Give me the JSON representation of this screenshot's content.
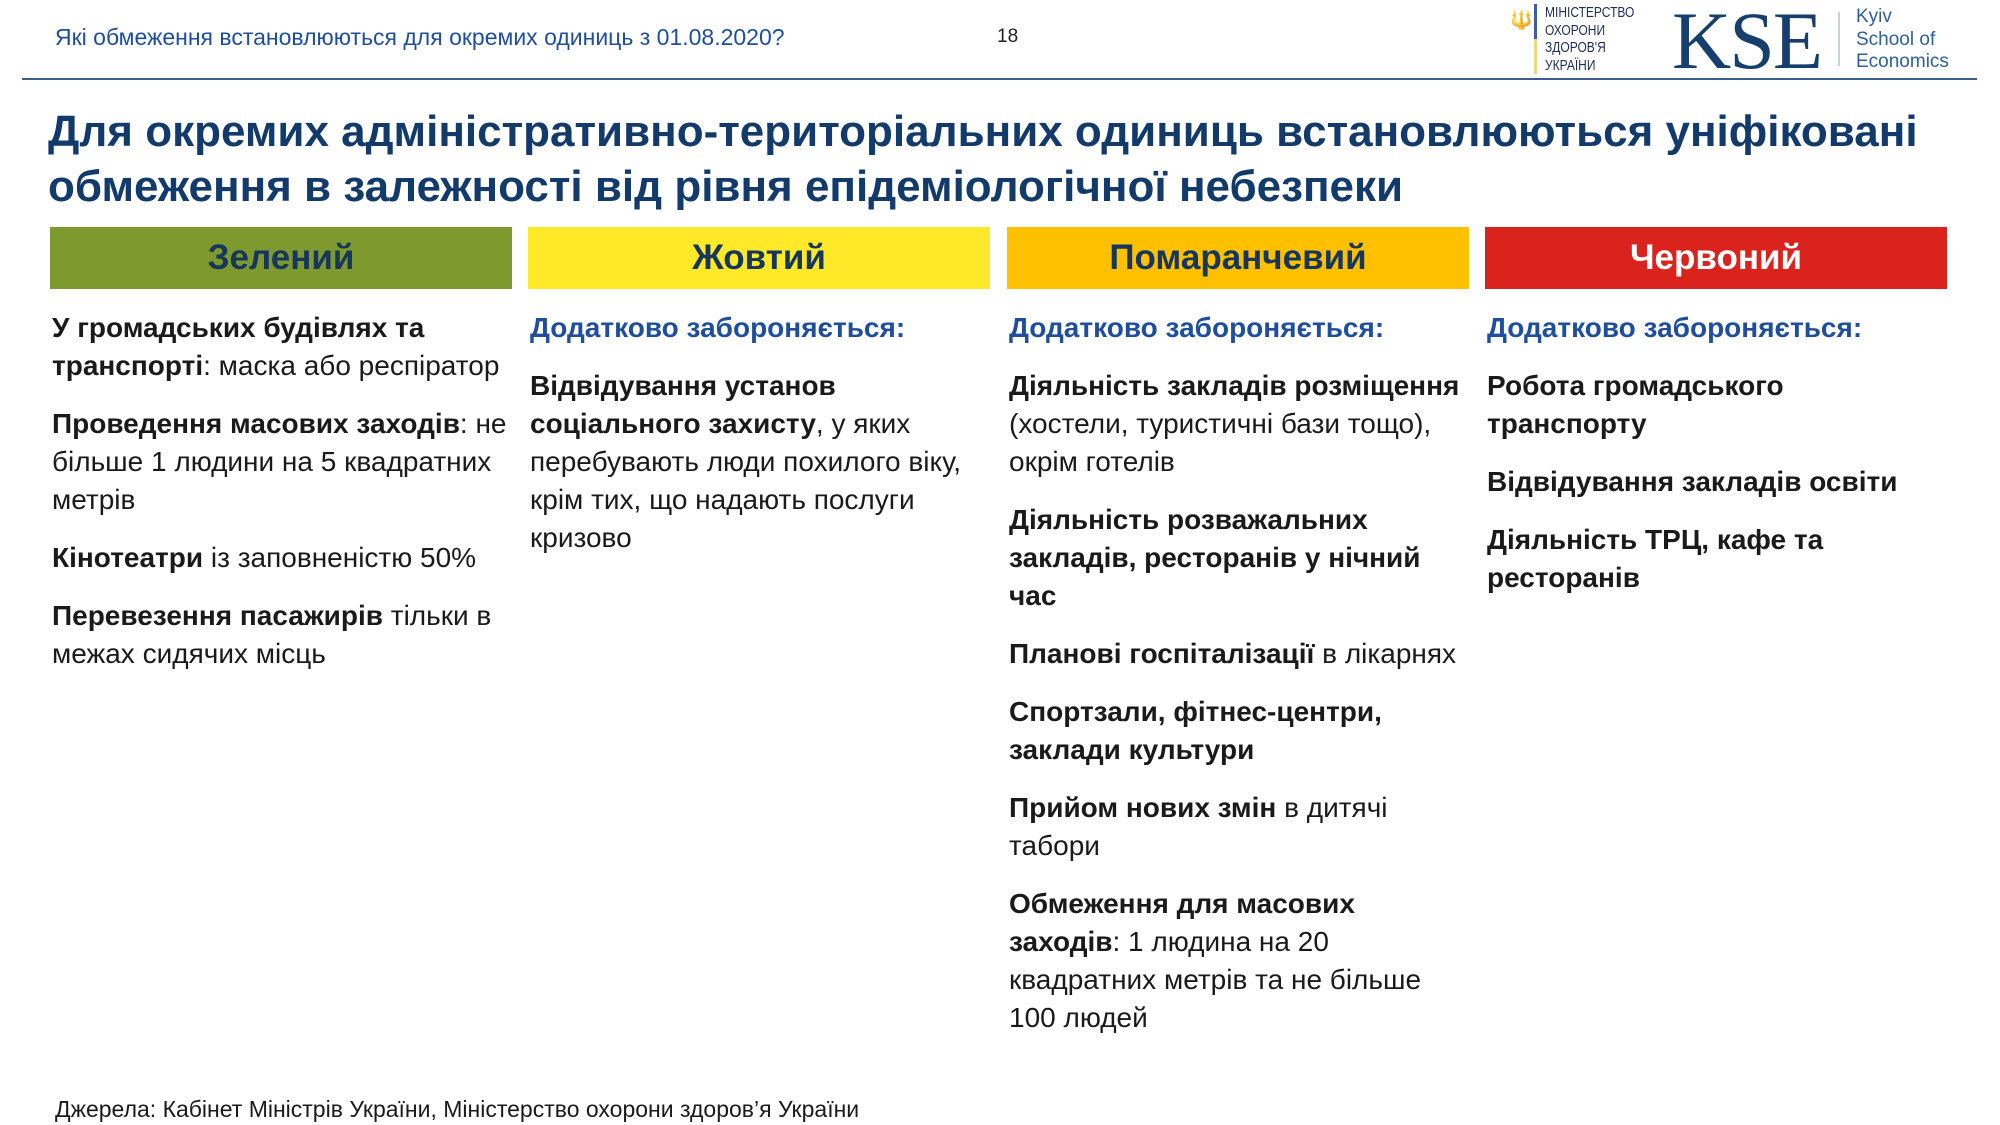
{
  "header": {
    "question": "Які обмеження встановлюються для окремих одиниць з 01.08.2020?",
    "page_number": "18",
    "ministry_logo": [
      "МІНІСТЕРСТВО",
      "ОХОРОНИ",
      "ЗДОРОВ'Я",
      "УКРАЇНИ"
    ],
    "kse_logo": "KSE",
    "kse_subtitle": [
      "Kyiv",
      "School of",
      "Economics"
    ]
  },
  "title": "Для окремих адміністративно-територіальних одиниць встановлюються уніфіковані обмеження в залежності від рівня епідеміологічної небезпеки",
  "colors": {
    "green": "#7e9a2f",
    "yellow": "#ffe928",
    "orange": "#ffc000",
    "red": "#d9231c"
  },
  "columns": [
    {
      "label": "Зелений",
      "subtitle": null,
      "items": [
        [
          {
            "b": "У громадських будівлях та транспорті"
          },
          {
            "t": ": маска або респіратор"
          }
        ],
        [
          {
            "b": "Проведення масових заходів"
          },
          {
            "t": ": не більше 1 людини на 5 квадратних метрів"
          }
        ],
        [
          {
            "b": "Кінотеатри"
          },
          {
            "t": " із заповненістю 50%"
          }
        ],
        [
          {
            "b": "Перевезення пасажирів"
          },
          {
            "t": " тільки в межах сидячих місць"
          }
        ]
      ]
    },
    {
      "label": "Жовтий",
      "subtitle": "Додатково забороняється:",
      "items": [
        [
          {
            "b": "Відвідування установ соціального захисту"
          },
          {
            "t": ", у яких перебувають люди похилого віку, крім тих, що надають послуги кризово"
          }
        ]
      ]
    },
    {
      "label": "Помаранчевий",
      "subtitle": "Додатково забороняється:",
      "items": [
        [
          {
            "b": "Діяльність закладів розміщення"
          },
          {
            "t": " (хостели, туристичні бази тощо), окрім готелів"
          }
        ],
        [
          {
            "b": "Діяльність розважальних закладів, ресторанів у нічний час"
          }
        ],
        [
          {
            "b": "Планові госпіталізації"
          },
          {
            "t": " в лікарнях"
          }
        ],
        [
          {
            "b": "Спортзали, фітнес-центри, заклади культури"
          }
        ],
        [
          {
            "b": "Прийом нових змін"
          },
          {
            "t": " в дитячі табори"
          }
        ],
        [
          {
            "b": "Обмеження для масових заходів"
          },
          {
            "t": ": 1 людина на 20 квадратних метрів та не більше 100 людей"
          }
        ]
      ]
    },
    {
      "label": "Червоний",
      "subtitle": "Додатково забороняється:",
      "items": [
        [
          {
            "b": "Робота громадського транспорту"
          }
        ],
        [
          {
            "b": "Відвідування закладів освіти"
          }
        ],
        [
          {
            "b": "Діяльність ТРЦ, кафе та ресторанів"
          }
        ]
      ]
    }
  ],
  "footer": "Джерела: Кабінет Міністрів України, Міністерство охорони здоров’я України"
}
